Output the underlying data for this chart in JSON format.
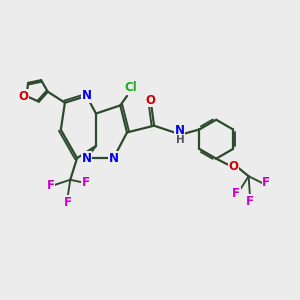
{
  "background_color": "#ececec",
  "bond_color": "#2d4a2d",
  "bond_width": 1.6,
  "atom_colors": {
    "N": "#0000ee",
    "O": "#cc0000",
    "F": "#cc00cc",
    "Cl": "#22aa22",
    "C": "#2d4a2d",
    "H": "#555555"
  },
  "font_size": 8.5
}
